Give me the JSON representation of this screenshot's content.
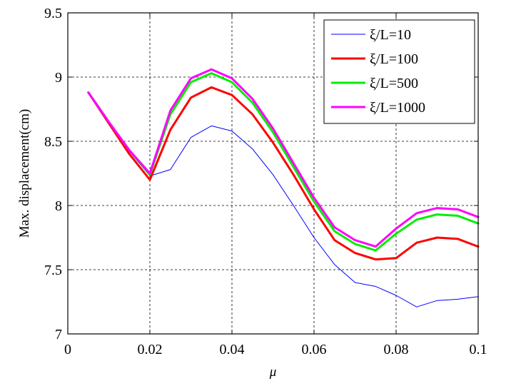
{
  "chart_data": {
    "type": "line",
    "xlabel": "μ",
    "ylabel": "Max. displacement(cm)",
    "xlim": [
      0,
      0.1
    ],
    "ylim": [
      7,
      9.5
    ],
    "xticks": [
      "0",
      "0.02",
      "0.04",
      "0.06",
      "0.08",
      "0.1"
    ],
    "xtick_values": [
      0,
      0.02,
      0.04,
      0.06,
      0.08,
      0.1
    ],
    "yticks": [
      "7",
      "7.5",
      "8",
      "8.5",
      "9",
      "9.5"
    ],
    "ytick_values": [
      7,
      7.5,
      8,
      8.5,
      9,
      9.5
    ],
    "grid": true,
    "legend_position": "top-right",
    "x": [
      0.005,
      0.01,
      0.015,
      0.02,
      0.025,
      0.03,
      0.035,
      0.04,
      0.045,
      0.05,
      0.055,
      0.06,
      0.065,
      0.07,
      0.075,
      0.08,
      0.085,
      0.09,
      0.095,
      0.1
    ],
    "series": [
      {
        "name": "ξ/L=10",
        "color": "#0000ff",
        "width": 1,
        "values": [
          8.88,
          8.63,
          8.42,
          8.23,
          8.28,
          8.53,
          8.62,
          8.58,
          8.44,
          8.24,
          8.0,
          7.75,
          7.54,
          7.4,
          7.37,
          7.3,
          7.21,
          7.26,
          7.27,
          7.29
        ]
      },
      {
        "name": "ξ/L=100",
        "color": "#ff0000",
        "width": 3,
        "values": [
          8.88,
          8.64,
          8.4,
          8.2,
          8.59,
          8.84,
          8.92,
          8.86,
          8.71,
          8.49,
          8.24,
          7.97,
          7.73,
          7.63,
          7.58,
          7.59,
          7.71,
          7.75,
          7.74,
          7.68
        ]
      },
      {
        "name": "ξ/L=500",
        "color": "#00ee00",
        "width": 3,
        "values": [
          8.88,
          8.65,
          8.43,
          8.24,
          8.71,
          8.96,
          9.03,
          8.96,
          8.8,
          8.57,
          8.3,
          8.03,
          7.8,
          7.7,
          7.65,
          7.78,
          7.89,
          7.93,
          7.92,
          7.86
        ]
      },
      {
        "name": "ξ/L=1000",
        "color": "#ff00ff",
        "width": 3,
        "values": [
          8.88,
          8.65,
          8.43,
          8.25,
          8.74,
          8.99,
          9.06,
          8.99,
          8.83,
          8.6,
          8.33,
          8.06,
          7.83,
          7.73,
          7.68,
          7.82,
          7.94,
          7.98,
          7.97,
          7.91
        ]
      }
    ]
  }
}
